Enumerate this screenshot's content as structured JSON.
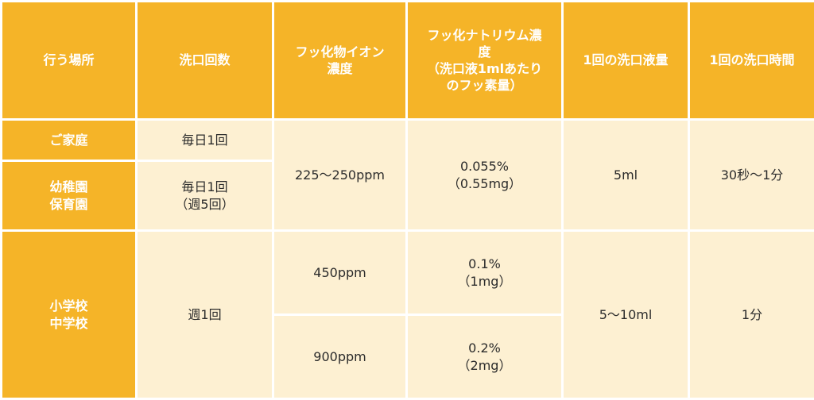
{
  "headers": {
    "place": "行う場所",
    "frequency": "洗口回数",
    "ion_conc": [
      "フッ化物イオン",
      "濃度"
    ],
    "naf_conc": [
      "フッ化ナトリウム濃",
      "度",
      "（洗口液1mlあたり",
      "のフッ素量）"
    ],
    "volume": "1回の洗口液量",
    "time": "1回の洗口時間"
  },
  "rows": {
    "home": {
      "place": "ご家庭",
      "frequency": "毎日1回"
    },
    "nursery": {
      "place": [
        "幼稚園",
        "保育園"
      ],
      "frequency": [
        "毎日1回",
        "（週5回）"
      ]
    },
    "shared_daily": {
      "ion_conc": "225〜250ppm",
      "naf_conc": [
        "0.055%",
        "（0.55mg）"
      ],
      "volume": "5ml",
      "time": "30秒〜1分"
    },
    "school": {
      "place": [
        "小学校",
        "中学校"
      ],
      "frequency": "週1回",
      "volume": "5〜10ml",
      "time": "1分",
      "option_a": {
        "ion_conc": "450ppm",
        "naf_conc": [
          "0.1%",
          "（1mg）"
        ]
      },
      "option_b": {
        "ion_conc": "900ppm",
        "naf_conc": [
          "0.2%",
          "（2mg）"
        ]
      }
    }
  },
  "colors": {
    "header_bg": "#F5B428",
    "cell_bg": "#FDF0D2",
    "border": "#FFFFFF"
  }
}
